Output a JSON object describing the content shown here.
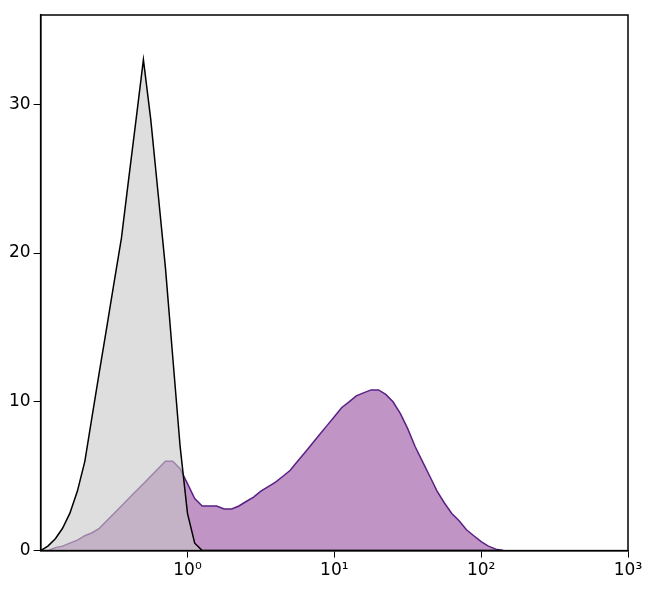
{
  "chart_data": {
    "type": "area",
    "log": "x",
    "grid": false,
    "xlim": [
      0.1,
      1000
    ],
    "xticks": [
      {
        "value": 1,
        "label": "10⁰"
      },
      {
        "value": 10,
        "label": "10¹"
      },
      {
        "value": 100,
        "label": "10²"
      },
      {
        "value": 1000,
        "label": "10³"
      }
    ],
    "ylim": [
      0,
      36
    ],
    "yticks": [
      0,
      10,
      20,
      30
    ],
    "x": [
      0.1,
      0.112,
      0.126,
      0.141,
      0.158,
      0.178,
      0.2,
      0.224,
      0.251,
      0.282,
      0.316,
      0.355,
      0.398,
      0.447,
      0.501,
      0.562,
      0.631,
      0.708,
      0.794,
      0.891,
      1,
      1.12,
      1.26,
      1.41,
      1.58,
      1.78,
      2,
      2.24,
      2.51,
      2.82,
      3.16,
      3.55,
      3.98,
      4.47,
      5.01,
      5.62,
      6.31,
      7.08,
      7.94,
      8.91,
      10,
      11.2,
      12.6,
      14.1,
      15.8,
      17.8,
      20,
      22.4,
      25.1,
      28.2,
      31.6,
      35.5,
      39.8,
      44.7,
      50.1,
      56.2,
      63.1,
      70.8,
      79.4,
      89.1,
      100,
      112,
      126,
      141
    ],
    "series": [
      {
        "color": "#000000",
        "values": [
          0,
          0.3,
          0.8,
          1.5,
          2.5,
          4,
          6,
          9,
          12,
          15,
          18,
          21,
          25,
          29,
          33,
          29,
          24,
          19,
          13,
          7,
          2.5,
          0.5,
          0,
          0,
          0,
          0,
          0,
          0,
          0,
          0,
          0,
          0,
          0,
          0,
          0,
          0,
          0,
          0,
          0,
          0,
          0,
          0,
          0,
          0,
          0,
          0,
          0,
          0,
          0,
          0,
          0,
          0,
          0,
          0,
          0,
          0,
          0,
          0,
          0,
          0,
          0,
          0,
          0,
          0
        ]
      },
      {
        "color": "#5b2085",
        "values": [
          0,
          0,
          0.2,
          0.3,
          0.5,
          0.7,
          1,
          1.2,
          1.5,
          2,
          2.5,
          3,
          3.5,
          4,
          4.5,
          5,
          5.5,
          6,
          6,
          5.5,
          4.5,
          3.5,
          3,
          3,
          3,
          2.8,
          2.8,
          3,
          3.3,
          3.6,
          4,
          4.3,
          4.6,
          5,
          5.4,
          6,
          6.6,
          7.2,
          7.8,
          8.4,
          9,
          9.6,
          10,
          10.4,
          10.6,
          10.8,
          10.8,
          10.5,
          10,
          9.2,
          8.2,
          7,
          6,
          5,
          4,
          3.2,
          2.5,
          2,
          1.4,
          1,
          0.6,
          0.3,
          0.1,
          0
        ]
      }
    ]
  }
}
